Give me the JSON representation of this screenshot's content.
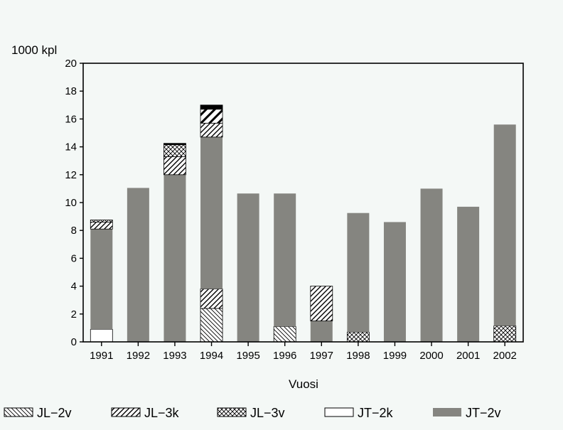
{
  "chart_data": {
    "type": "bar",
    "stacked": true,
    "title": "",
    "xlabel": "Vuosi",
    "ylabel": "1000 kpl",
    "ylim": [
      0,
      20
    ],
    "yticks": [
      0,
      2,
      4,
      6,
      8,
      10,
      12,
      14,
      16,
      18,
      20
    ],
    "grid": false,
    "legend_position": "bottom",
    "categories": [
      "1991",
      "1992",
      "1993",
      "1994",
      "1995",
      "1996",
      "1997",
      "1998",
      "1999",
      "2000",
      "2001",
      "2002"
    ],
    "series": [
      {
        "name": "JT-2k",
        "fill": "white",
        "values": [
          0.9,
          0,
          0,
          0,
          0,
          0,
          0,
          0,
          0,
          0,
          0,
          0
        ]
      },
      {
        "name": "JL-2v",
        "fill": "diag-back",
        "values": [
          0,
          0,
          0,
          2.4,
          0,
          1.1,
          0,
          0,
          0,
          0,
          0,
          0
        ]
      },
      {
        "name": "JL-3k",
        "fill": "diag-fwd",
        "values": [
          0,
          0,
          0,
          1.4,
          0,
          0,
          0,
          0,
          0,
          0,
          0,
          0
        ]
      },
      {
        "name": "JL-3v",
        "fill": "crosshatch",
        "values": [
          0,
          0,
          0,
          0,
          0,
          0,
          0,
          0.7,
          0,
          0,
          0,
          1.15
        ]
      },
      {
        "name": "JT-2v",
        "fill": "solid-gray",
        "values": [
          7.2,
          11.05,
          12.0,
          10.9,
          10.65,
          9.55,
          1.5,
          8.55,
          8.6,
          11.0,
          9.7,
          14.45
        ]
      },
      {
        "name": "JL-3k",
        "fill": "diag-fwd",
        "values": [
          0.5,
          0,
          1.3,
          1.0,
          0,
          0,
          2.5,
          0,
          0,
          0,
          0,
          0
        ]
      },
      {
        "name": "JL-3k",
        "fill": "diag-fwd-wide",
        "values": [
          0,
          0,
          0,
          1.0,
          0,
          0,
          0,
          0,
          0,
          0,
          0,
          0
        ]
      },
      {
        "name": "JL-3v",
        "fill": "crosshatch",
        "values": [
          0.15,
          0,
          0.85,
          0,
          0,
          0,
          0,
          0,
          0,
          0,
          0,
          0
        ]
      },
      {
        "name": "",
        "fill": "solid-black",
        "values": [
          0,
          0,
          0.1,
          0.3,
          0,
          0,
          0,
          0,
          0,
          0,
          0,
          0
        ]
      }
    ],
    "legend": [
      {
        "label": "JL−2v",
        "fill": "diag-back"
      },
      {
        "label": "JL−3k",
        "fill": "diag-fwd"
      },
      {
        "label": "JL−3v",
        "fill": "crosshatch"
      },
      {
        "label": "JT−2k",
        "fill": "white"
      },
      {
        "label": "JT−2v",
        "fill": "solid-gray"
      }
    ],
    "colors": {
      "gray": "#858580",
      "background": "#f4f8f6",
      "ink": "#000000"
    }
  }
}
